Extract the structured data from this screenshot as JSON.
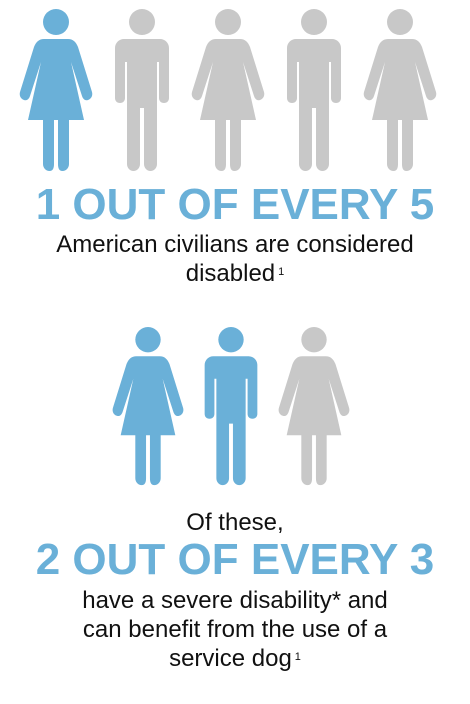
{
  "colors": {
    "highlight": "#6ab0d8",
    "muted": "#c8c8c8",
    "text": "#111111"
  },
  "section1": {
    "figures": [
      {
        "icon": "female-figure-icon",
        "highlighted": true
      },
      {
        "icon": "male-figure-icon",
        "highlighted": false
      },
      {
        "icon": "female-figure-icon",
        "highlighted": false
      },
      {
        "icon": "male-figure-icon",
        "highlighted": false
      },
      {
        "icon": "female-figure-icon",
        "highlighted": false
      }
    ],
    "headline": "1 OUT OF EVERY 5",
    "line1": "American civilians are considered",
    "line2": "disabled",
    "footnote_ref": "1"
  },
  "section2": {
    "figures": [
      {
        "icon": "female-figure-icon",
        "highlighted": true
      },
      {
        "icon": "male-figure-icon",
        "highlighted": true
      },
      {
        "icon": "female-figure-icon",
        "highlighted": false
      }
    ],
    "intro": "Of these,",
    "headline": "2 OUT OF EVERY 3",
    "line1": "have a severe disability* and",
    "line2": "can benefit from the use of a",
    "line3": "service dog",
    "footnote_ref": "1"
  }
}
